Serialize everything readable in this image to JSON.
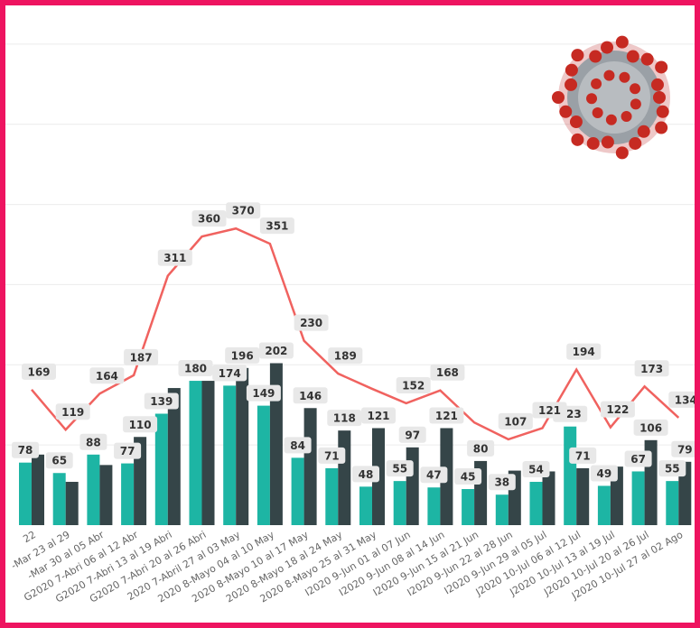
{
  "chart_data": {
    "type": "combo",
    "categories": [
      "22",
      "-Mar 23 al 29",
      "-Mar 30 al 05 Abr",
      "G2020 7-Abri 06 al 12 Abr",
      "G2020 7-Abri 13 al 19 Abri",
      "G2020 7-Abri 20 al 26 Abri",
      "2020 7-Abril 27 al 03 May",
      "2020 8-Mayo 04 al 10 May",
      "2020 8-Mayo 10 al 17 May",
      "2020 8-Mayo 18 al 24 May",
      "2020 8-Mayo 25 al 31 May",
      "I2020 9-Jun 01 al 07 Jun",
      "I2020 9-Jun 08 al 14 Jun",
      "I2020 9-Jun 15 al 21 Jun",
      "I2020 9-Jun 22 al 28 Jun",
      "I2020 9-Jun 29 al 05 Jul",
      "J2020 10-Jul 06 al 12 Jul",
      "J2020 10-Jul 13 al 19 Jul",
      "J2020 10-Jul 20 al 26 Jul",
      "J2020 10-Jul 27 al 02 Ago"
    ],
    "series": [
      {
        "type": "bar",
        "color": "#1db5a4",
        "values": [
          78,
          65,
          88,
          77,
          139,
          180,
          174,
          149,
          84,
          71,
          48,
          55,
          47,
          45,
          38,
          54,
          123,
          49,
          67,
          55
        ],
        "value_labels": [
          "78",
          "65",
          "88",
          "77",
          "139",
          "180",
          "174",
          "149",
          "84",
          "71",
          "48",
          "55",
          "47",
          "45",
          "38",
          "54",
          "123",
          "49",
          "67",
          "55"
        ]
      },
      {
        "type": "bar",
        "color": "#354548",
        "values": [
          88,
          54,
          75,
          110,
          171,
          180,
          196,
          202,
          146,
          118,
          121,
          97,
          121,
          80,
          68,
          67,
          71,
          73,
          106,
          79
        ],
        "value_labels": [
          null,
          null,
          null,
          "110",
          null,
          null,
          "196",
          "202",
          "146",
          "118",
          "121",
          "97",
          "121",
          "80",
          null,
          null,
          "71",
          null,
          "106",
          "79"
        ]
      },
      {
        "type": "line",
        "color": "#f0625f",
        "values": [
          169,
          119,
          164,
          187,
          311,
          360,
          370,
          351,
          230,
          189,
          170,
          152,
          168,
          128,
          107,
          121,
          194,
          122,
          173,
          134
        ],
        "value_labels": [
          "169",
          "119",
          "164",
          "187",
          "311",
          "360",
          "370",
          "351",
          "230",
          "189",
          null,
          "152",
          "168",
          null,
          "107",
          "121",
          "194",
          "122",
          "173",
          "134"
        ]
      }
    ],
    "ylim": [
      0,
      655
    ],
    "gridlines": [
      100,
      200,
      300,
      400,
      500,
      600
    ],
    "grid": true
  }
}
